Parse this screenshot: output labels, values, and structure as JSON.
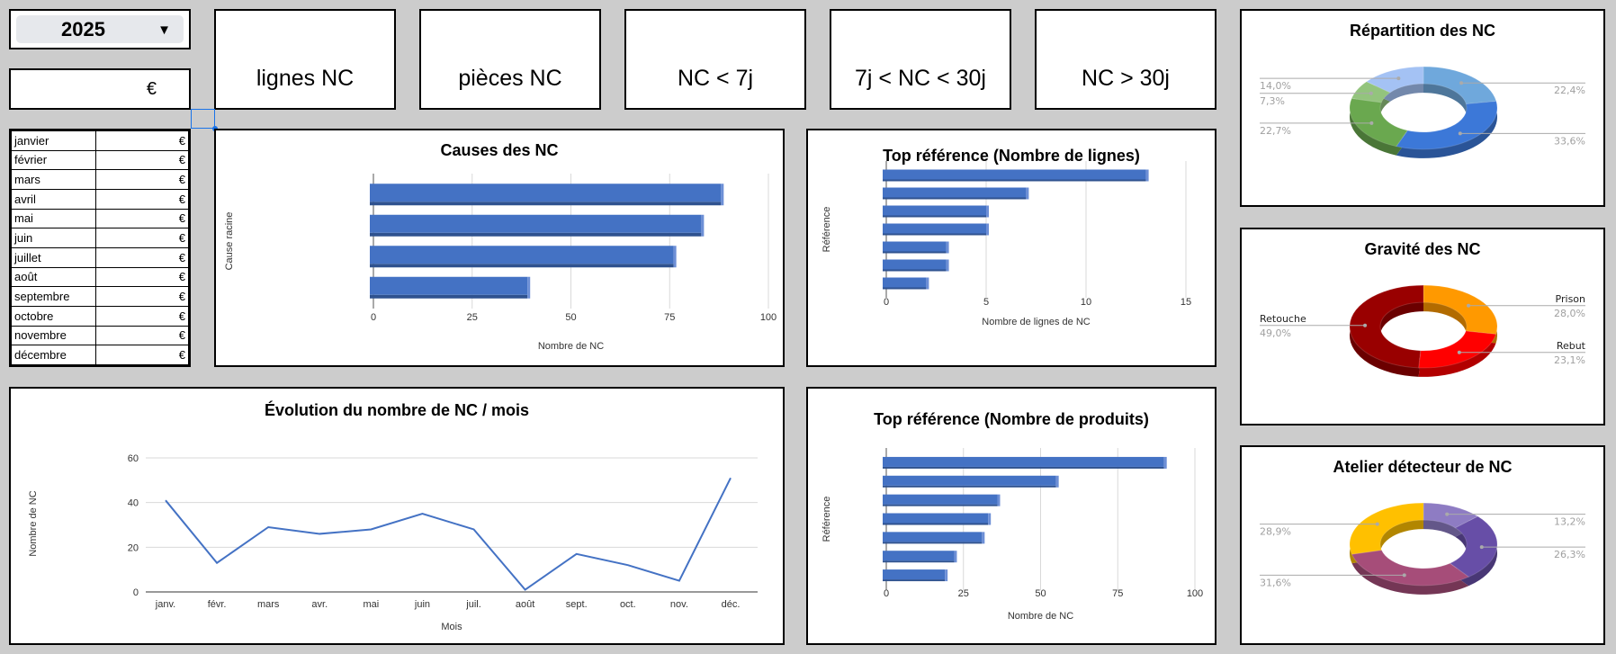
{
  "year_selector": {
    "value": "2025"
  },
  "total_cost": {
    "value": "€"
  },
  "kpis": [
    "lignes NC",
    "pièces NC",
    "NC < 7j",
    "7j < NC < 30j",
    "NC > 30j"
  ],
  "months_table": [
    {
      "month": "janvier",
      "value": "€"
    },
    {
      "month": "février",
      "value": "€"
    },
    {
      "month": "mars",
      "value": "€"
    },
    {
      "month": "avril",
      "value": "€"
    },
    {
      "month": "mai",
      "value": "€"
    },
    {
      "month": "juin",
      "value": "€"
    },
    {
      "month": "juillet",
      "value": "€"
    },
    {
      "month": "août",
      "value": "€"
    },
    {
      "month": "septembre",
      "value": "€"
    },
    {
      "month": "octobre",
      "value": "€"
    },
    {
      "month": "novembre",
      "value": "€"
    },
    {
      "month": "décembre",
      "value": "€"
    }
  ],
  "chart_data": [
    {
      "id": "causes",
      "type": "bar",
      "orientation": "horizontal",
      "title": "Causes des NC",
      "xlabel": "Nombre de NC",
      "ylabel": "Cause racine",
      "values": [
        88,
        83,
        76,
        39
      ],
      "xlim": [
        0,
        100
      ],
      "ticks": [
        "0",
        "25",
        "50",
        "75",
        "100"
      ],
      "color": "#4472c4"
    },
    {
      "id": "top_lignes",
      "type": "bar",
      "orientation": "horizontal",
      "title": "Top référence (Nombre de lignes)",
      "xlabel": "Nombre de lignes de NC",
      "ylabel": "Référence",
      "values": [
        13,
        7,
        5,
        5,
        3,
        3,
        2
      ],
      "xlim": [
        0,
        15
      ],
      "ticks": [
        "0",
        "5",
        "10",
        "15"
      ],
      "color": "#4472c4"
    },
    {
      "id": "top_produits",
      "type": "bar",
      "orientation": "horizontal",
      "title": "Top référence (Nombre de produits)",
      "xlabel": "Nombre de NC",
      "ylabel": "Référence",
      "values": [
        90,
        55,
        36,
        33,
        31,
        22,
        19
      ],
      "xlim": [
        0,
        100
      ],
      "ticks": [
        "0",
        "25",
        "50",
        "75",
        "100"
      ],
      "color": "#4472c4"
    },
    {
      "id": "evolution",
      "type": "line",
      "title": "Évolution du nombre de NC / mois",
      "xlabel": "Mois",
      "ylabel": "Nombre de NC",
      "categories": [
        "janv.",
        "févr.",
        "mars",
        "avr.",
        "mai",
        "juin",
        "juil.",
        "août",
        "sept.",
        "oct.",
        "nov.",
        "déc."
      ],
      "values": [
        41,
        13,
        29,
        26,
        28,
        35,
        28,
        1,
        17,
        12,
        5,
        51
      ],
      "ylim": [
        0,
        60
      ],
      "ticks": [
        "0",
        "20",
        "40",
        "60"
      ],
      "color": "#4472c4"
    },
    {
      "id": "repartition",
      "type": "pie",
      "title": "Répartition des NC",
      "slices": [
        {
          "label": "",
          "value": 22.4,
          "text": "22,4%",
          "color": "#6fa8dc"
        },
        {
          "label": "",
          "value": 33.6,
          "text": "33,6%",
          "color": "#3c78d8"
        },
        {
          "label": "",
          "value": 22.7,
          "text": "22,7%",
          "color": "#6aa84f"
        },
        {
          "label": "",
          "value": 7.3,
          "text": "7,3%",
          "color": "#93c47d"
        },
        {
          "label": "",
          "value": 14.0,
          "text": "14,0%",
          "color": "#a4c2f4"
        }
      ]
    },
    {
      "id": "gravite",
      "type": "pie",
      "title": "Gravité des NC",
      "slices": [
        {
          "label": "Prison",
          "value": 28.0,
          "text": "28,0%",
          "color": "#ff9900"
        },
        {
          "label": "Rebut",
          "value": 23.1,
          "text": "23,1%",
          "color": "#ff0000"
        },
        {
          "label": "Retouche",
          "value": 49.0,
          "text": "49,0%",
          "color": "#990000"
        }
      ]
    },
    {
      "id": "atelier",
      "type": "pie",
      "title": "Atelier détecteur de NC",
      "slices": [
        {
          "label": "",
          "value": 13.2,
          "text": "13,2%",
          "color": "#8e7cc3"
        },
        {
          "label": "",
          "value": 26.3,
          "text": "26,3%",
          "color": "#674ea7"
        },
        {
          "label": "",
          "value": 31.6,
          "text": "31,6%",
          "color": "#a64d79"
        },
        {
          "label": "",
          "value": 28.9,
          "text": "28,9%",
          "color": "#ffc000"
        }
      ]
    }
  ]
}
